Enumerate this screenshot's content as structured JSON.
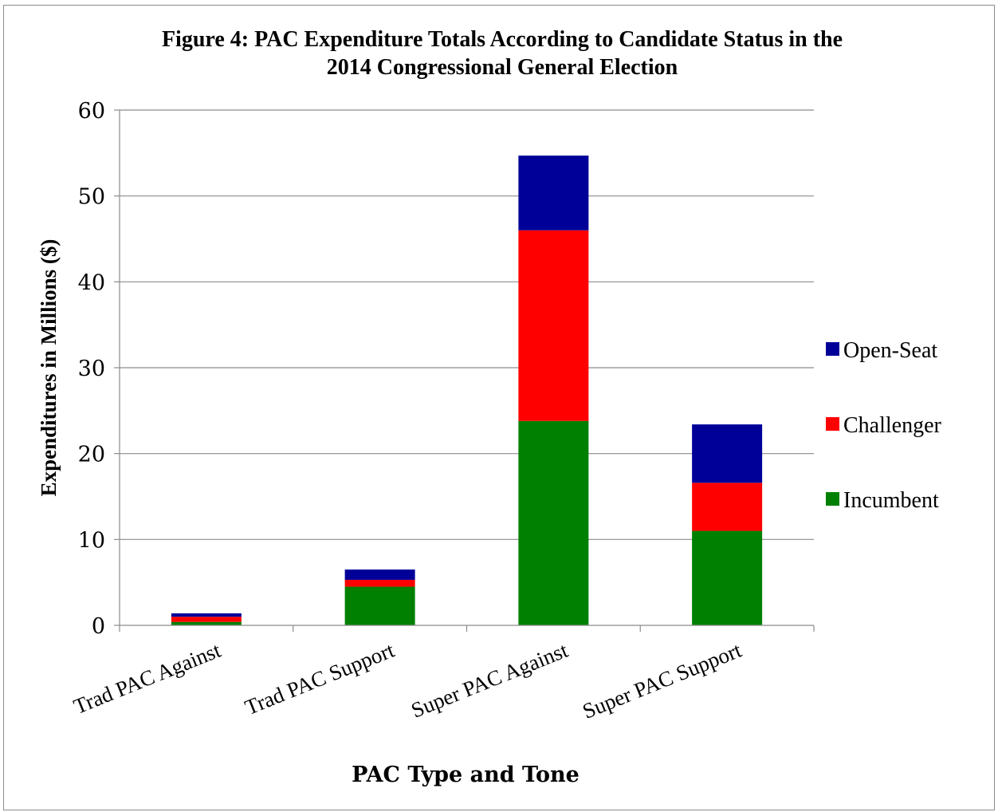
{
  "chart_data": {
    "type": "bar",
    "stacked": true,
    "title_line1": "Figure 4: PAC Expenditure Totals According to Candidate Status in the",
    "title_line2": "2014 Congressional General Election",
    "xlabel": "PAC Type and Tone",
    "ylabel": "Expenditures in Millions ($)",
    "ylim": [
      0,
      60
    ],
    "yticks": [
      0,
      10,
      20,
      30,
      40,
      50,
      60
    ],
    "grid": true,
    "legend_position": "right",
    "categories": [
      "Trad PAC Against",
      "Trad PAC Support",
      "Super PAC Against",
      "Super PAC Support"
    ],
    "series": [
      {
        "name": "Incumbent",
        "color": "#008000",
        "values": [
          0.4,
          4.5,
          23.8,
          11.0
        ]
      },
      {
        "name": "Challenger",
        "color": "#ff0000",
        "values": [
          0.6,
          0.8,
          22.2,
          5.6
        ]
      },
      {
        "name": "Open-Seat",
        "color": "#000099",
        "values": [
          0.4,
          1.2,
          8.7,
          6.8
        ]
      }
    ],
    "legend_order": [
      "Open-Seat",
      "Challenger",
      "Incumbent"
    ]
  }
}
